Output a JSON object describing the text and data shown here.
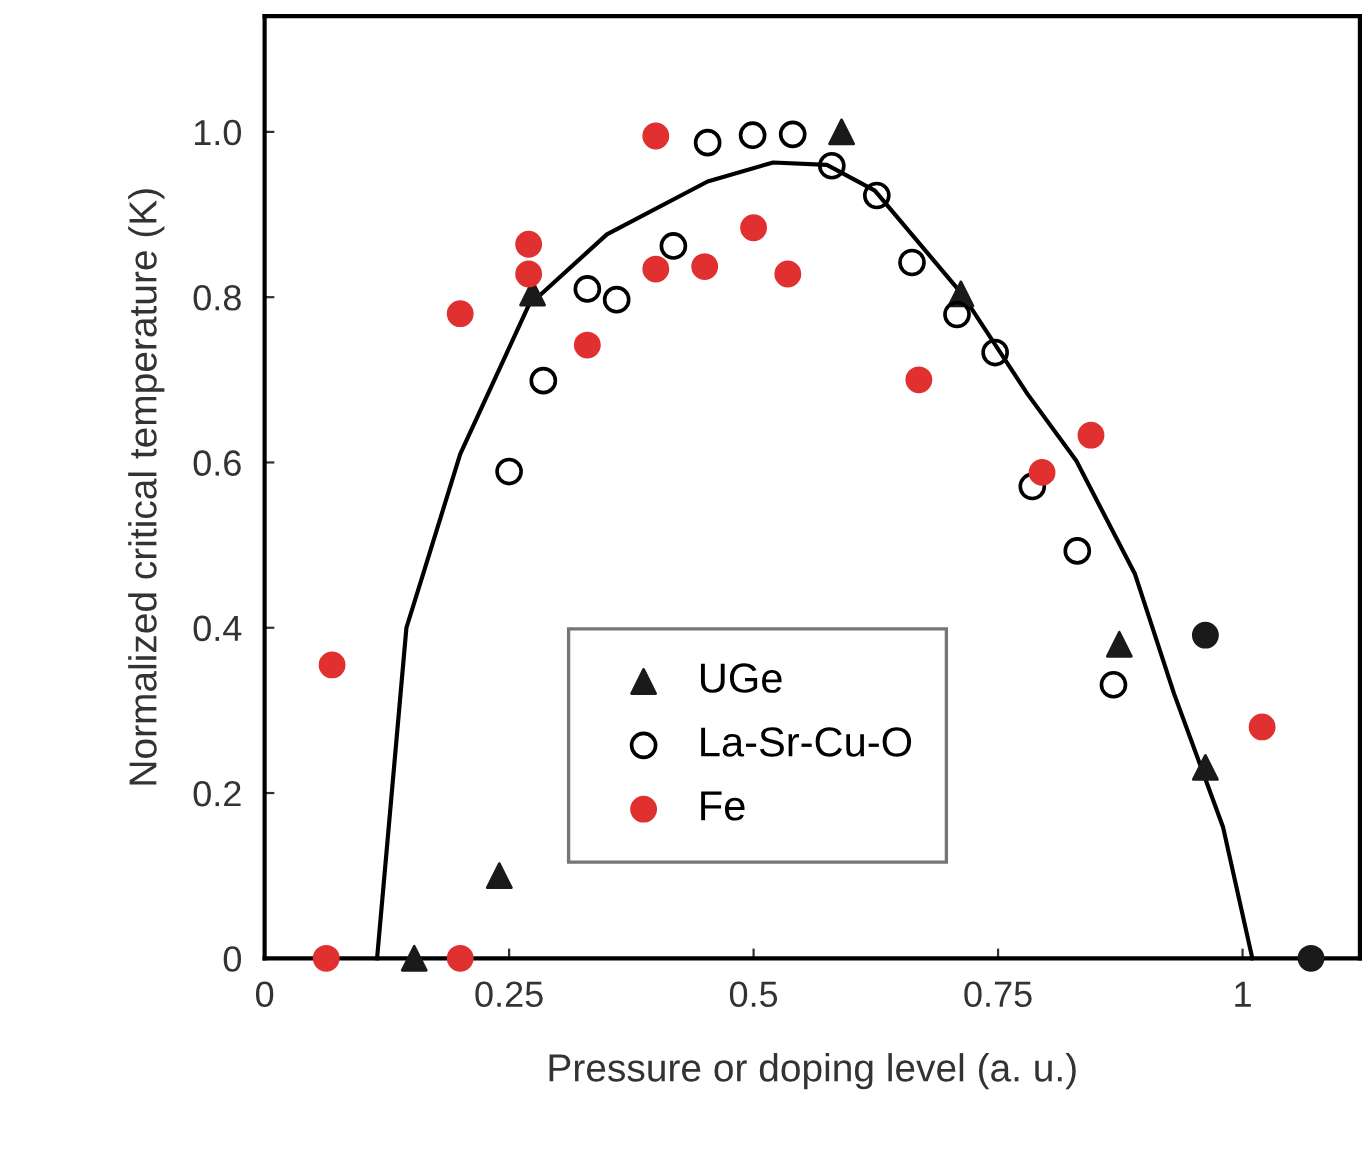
{
  "chart_data": {
    "type": "scatter",
    "xlabel": "Pressure or doping level (a. u.)",
    "ylabel": "Normalized critical temperature (K)",
    "xlim": [
      0,
      1.12
    ],
    "ylim": [
      0,
      1.14
    ],
    "xticks": [
      0,
      0.25,
      0.5,
      0.75,
      1
    ],
    "yticks": [
      0,
      0.2,
      0.4,
      0.6,
      0.8,
      {
        "value": 1.0,
        "label": "1.0"
      }
    ],
    "grid": false,
    "legend": "bottom",
    "series": [
      {
        "type": "line",
        "color": "#000000",
        "marker": "none",
        "line_style": "solid",
        "x": [
          0.115,
          0.145,
          0.16,
          0.2,
          0.27,
          0.35,
          0.453,
          0.52,
          0.575,
          0.624,
          0.713,
          0.78,
          0.83,
          0.89,
          0.93,
          0.98,
          1.01
        ],
        "values": [
          0,
          0.4,
          0.457,
          0.61,
          0.79,
          0.876,
          0.94,
          0.963,
          0.96,
          0.929,
          0.804,
          0.683,
          0.602,
          0.465,
          0.32,
          0.159,
          0
        ]
      },
      {
        "name": "UGe",
        "color": "#1a1a1a",
        "marker": "triangle",
        "x": [
          0.153,
          0.24,
          0.274,
          0.59,
          0.712,
          0.874,
          0.962
        ],
        "values": [
          0,
          0.1,
          0.805,
          1.0,
          0.804,
          0.38,
          0.231
        ]
      },
      {
        "name": "La-Sr-Cu-O",
        "marker": "circle",
        "x": [
          0.25,
          0.285,
          0.33,
          0.36,
          0.418,
          0.453,
          0.499,
          0.54,
          0.58,
          0.626,
          0.662,
          0.708,
          0.747,
          0.785,
          0.831,
          0.868
        ],
        "values": [
          0.589,
          0.699,
          0.81,
          0.797,
          0.862,
          0.987,
          0.996,
          0.997,
          0.959,
          0.923,
          0.842,
          0.779,
          0.733,
          0.571,
          0.493,
          0.331
        ]
      },
      {
        "name": "Fe",
        "color": "#e03030",
        "marker": "circle",
        "x": [
          0.063,
          0.069,
          0.2,
          0.2,
          0.27,
          0.27,
          0.33,
          0.4,
          0.4,
          0.45,
          0.5,
          0.535,
          0.669,
          0.795,
          0.845,
          1.02
        ],
        "values": [
          0,
          0.355,
          0,
          0.78,
          0.864,
          0.828,
          0.742,
          0.995,
          0.834,
          0.837,
          0.884,
          0.828,
          0.7,
          0.588,
          0.633,
          0.28
        ]
      },
      {
        "color": "#1a1a1a",
        "marker": "circle",
        "x": [
          0.962,
          1.07
        ],
        "values": [
          0.391,
          0
        ]
      }
    ]
  }
}
